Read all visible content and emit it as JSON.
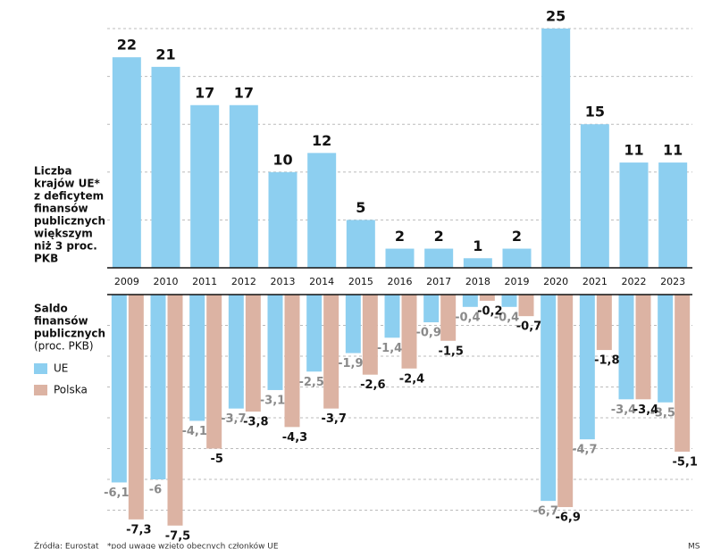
{
  "chart_data": [
    {
      "type": "bar",
      "ylabel": [
        "Liczba",
        "krajów UE*",
        "z deficytem",
        "finansów",
        "publicznych",
        "większym",
        "niż 3 proc.",
        "PKB"
      ],
      "categories": [
        "2009",
        "2010",
        "2011",
        "2012",
        "2013",
        "2014",
        "2015",
        "2016",
        "2017",
        "2018",
        "2019",
        "2020",
        "2021",
        "2022",
        "2023"
      ],
      "values": [
        22,
        21,
        17,
        17,
        10,
        12,
        5,
        2,
        2,
        1,
        2,
        25,
        15,
        11,
        11
      ],
      "color": "#8dcff0",
      "ylim": [
        0,
        25
      ],
      "yticks": [
        5,
        10,
        15,
        20,
        25
      ],
      "grid": true
    },
    {
      "type": "grouped-bar",
      "ylabel": [
        "Saldo",
        "finansów",
        "publicznych",
        "(proc. PKB)"
      ],
      "series": [
        {
          "name": "UE",
          "color": "#8dcff0",
          "values": [
            -6.1,
            -6,
            -4.1,
            -3.7,
            -3.1,
            -2.5,
            -1.9,
            -1.4,
            -0.9,
            -0.4,
            -0.4,
            -6.7,
            -4.7,
            -3.4,
            -3.5
          ],
          "value_labels": [
            "-6,1",
            "-6",
            "-4,1",
            "-3,7",
            "-3,1",
            "-2,5",
            "-1,9",
            "-1,4",
            "-0,9",
            "-0,4",
            "-0,4",
            "-6,7",
            "-4,7",
            "-3,4",
            "-3,5"
          ]
        },
        {
          "name": "Polska",
          "color": "#dcb3a3",
          "values": [
            -7.3,
            -7.5,
            -5,
            -3.8,
            -4.3,
            -3.7,
            -2.6,
            -2.4,
            -1.5,
            -0.2,
            -0.7,
            -6.9,
            -1.8,
            -3.4,
            -5.1
          ],
          "value_labels": [
            "-7,3",
            "-7,5",
            "-5",
            "-3,8",
            "-4,3",
            "-3,7",
            "-2,6",
            "-2,4",
            "-1,5",
            "-0,2",
            "-0,7",
            "-6,9",
            "-1,8",
            "-3,4",
            "-5,1"
          ]
        }
      ],
      "ylim": [
        -8,
        0
      ],
      "yticks": [
        -1,
        -2,
        -3,
        -4,
        -5,
        -6,
        -7
      ],
      "grid": true
    }
  ],
  "footer": {
    "source": "Źródła: Eurostat",
    "note": "*pod uwagę wzięto obecnych członków UE",
    "credit": "MS"
  }
}
